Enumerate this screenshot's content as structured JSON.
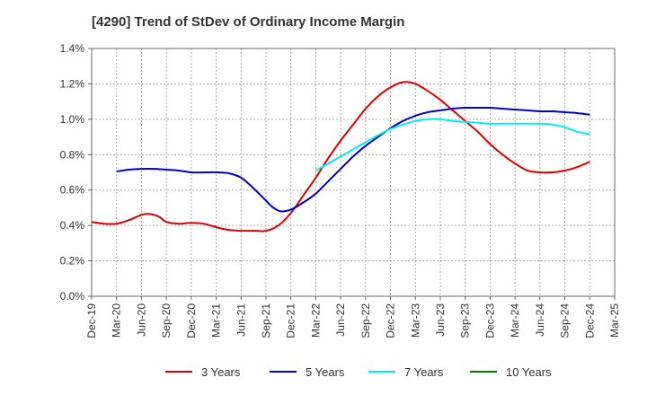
{
  "chart_data": {
    "type": "line",
    "title": "[4290]  Trend of StDev of Ordinary Income Margin",
    "xlabel": "",
    "ylabel": "",
    "ylim": [
      0,
      1.4
    ],
    "y_ticks": [
      0,
      0.2,
      0.4,
      0.6,
      0.8,
      1.0,
      1.2,
      1.4
    ],
    "y_tick_labels": [
      "0.0%",
      "0.2%",
      "0.4%",
      "0.6%",
      "0.8%",
      "1.0%",
      "1.2%",
      "1.4%"
    ],
    "x_tick_labels": [
      "Dec-19",
      "Mar-20",
      "Jun-20",
      "Sep-20",
      "Dec-20",
      "Mar-21",
      "Jun-21",
      "Sep-21",
      "Dec-21",
      "Mar-22",
      "Jun-22",
      "Sep-22",
      "Dec-22",
      "Mar-23",
      "Jun-23",
      "Sep-23",
      "Dec-23",
      "Mar-24",
      "Jun-24",
      "Sep-24",
      "Dec-24",
      "Mar-25"
    ],
    "grid": true,
    "legend_position": "bottom",
    "series": [
      {
        "name": "3 Years",
        "color": "#dd0000",
        "points": [
          [
            0,
            0.42
          ],
          [
            0.5,
            0.41
          ],
          [
            1,
            0.41
          ],
          [
            1.5,
            0.43
          ],
          [
            2,
            0.46
          ],
          [
            2.3,
            0.465
          ],
          [
            2.7,
            0.45
          ],
          [
            3,
            0.42
          ],
          [
            3.5,
            0.41
          ],
          [
            4,
            0.415
          ],
          [
            4.5,
            0.41
          ],
          [
            5,
            0.39
          ],
          [
            5.5,
            0.375
          ],
          [
            6,
            0.37
          ],
          [
            6.5,
            0.37
          ],
          [
            7,
            0.37
          ],
          [
            7.5,
            0.4
          ],
          [
            8,
            0.47
          ],
          [
            8.5,
            0.57
          ],
          [
            9,
            0.67
          ],
          [
            9.5,
            0.78
          ],
          [
            10,
            0.88
          ],
          [
            10.5,
            0.97
          ],
          [
            11,
            1.06
          ],
          [
            11.5,
            1.13
          ],
          [
            12,
            1.18
          ],
          [
            12.5,
            1.21
          ],
          [
            13,
            1.2
          ],
          [
            13.5,
            1.16
          ],
          [
            14,
            1.11
          ],
          [
            14.5,
            1.05
          ],
          [
            15,
            0.99
          ],
          [
            15.5,
            0.93
          ],
          [
            16,
            0.86
          ],
          [
            16.5,
            0.8
          ],
          [
            17,
            0.75
          ],
          [
            17.5,
            0.71
          ],
          [
            18,
            0.7
          ],
          [
            18.5,
            0.7
          ],
          [
            19,
            0.71
          ],
          [
            19.5,
            0.73
          ],
          [
            20,
            0.76
          ]
        ]
      },
      {
        "name": "5 Years",
        "color": "#0000cc",
        "points": [
          [
            1,
            0.705
          ],
          [
            1.5,
            0.715
          ],
          [
            2,
            0.72
          ],
          [
            2.5,
            0.72
          ],
          [
            3,
            0.715
          ],
          [
            3.5,
            0.71
          ],
          [
            4,
            0.7
          ],
          [
            4.5,
            0.7
          ],
          [
            5,
            0.7
          ],
          [
            5.5,
            0.695
          ],
          [
            6,
            0.67
          ],
          [
            6.5,
            0.61
          ],
          [
            7,
            0.54
          ],
          [
            7.3,
            0.5
          ],
          [
            7.6,
            0.48
          ],
          [
            8,
            0.49
          ],
          [
            8.5,
            0.53
          ],
          [
            9,
            0.58
          ],
          [
            9.5,
            0.65
          ],
          [
            10,
            0.72
          ],
          [
            10.5,
            0.79
          ],
          [
            11,
            0.85
          ],
          [
            11.5,
            0.9
          ],
          [
            12,
            0.95
          ],
          [
            12.5,
            0.99
          ],
          [
            13,
            1.02
          ],
          [
            13.5,
            1.04
          ],
          [
            14,
            1.05
          ],
          [
            14.5,
            1.06
          ],
          [
            15,
            1.065
          ],
          [
            15.5,
            1.065
          ],
          [
            16,
            1.065
          ],
          [
            16.5,
            1.06
          ],
          [
            17,
            1.055
          ],
          [
            17.5,
            1.05
          ],
          [
            18,
            1.045
          ],
          [
            18.5,
            1.045
          ],
          [
            19,
            1.04
          ],
          [
            19.5,
            1.035
          ],
          [
            20,
            1.025
          ]
        ]
      },
      {
        "name": "7 Years",
        "color": "#00eeee",
        "points": [
          [
            9,
            0.71
          ],
          [
            9.5,
            0.75
          ],
          [
            10,
            0.79
          ],
          [
            10.5,
            0.83
          ],
          [
            11,
            0.87
          ],
          [
            11.5,
            0.91
          ],
          [
            12,
            0.945
          ],
          [
            12.5,
            0.97
          ],
          [
            13,
            0.99
          ],
          [
            13.5,
            1.0
          ],
          [
            14,
            1.0
          ],
          [
            14.5,
            0.99
          ],
          [
            15,
            0.985
          ],
          [
            15.5,
            0.98
          ],
          [
            16,
            0.975
          ],
          [
            16.5,
            0.975
          ],
          [
            17,
            0.975
          ],
          [
            17.5,
            0.975
          ],
          [
            18,
            0.975
          ],
          [
            18.5,
            0.97
          ],
          [
            19,
            0.955
          ],
          [
            19.5,
            0.93
          ],
          [
            20,
            0.915
          ]
        ]
      },
      {
        "name": "10 Years",
        "color": "#008000",
        "points": []
      }
    ]
  }
}
